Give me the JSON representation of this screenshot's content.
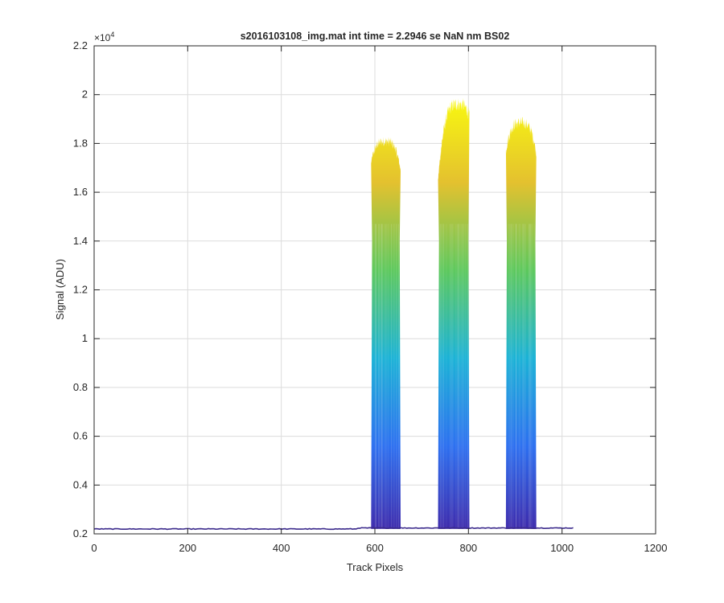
{
  "chart_data": {
    "type": "area",
    "title": "s2016103108_img.mat int time = 2.2946 se  NaN nm BS02",
    "xlabel": "Track Pixels",
    "ylabel": "Signal (ADU)",
    "y_exponent_label": "×10",
    "y_exponent_power": "4",
    "xlim": [
      0,
      1200
    ],
    "ylim": [
      2000,
      22000
    ],
    "x_ticks": [
      0,
      200,
      400,
      600,
      800,
      1000,
      1200
    ],
    "x_tick_labels": [
      "0",
      "200",
      "400",
      "600",
      "800",
      "1000",
      "1200"
    ],
    "y_ticks": [
      2000,
      4000,
      6000,
      8000,
      10000,
      12000,
      14000,
      16000,
      18000,
      20000,
      22000
    ],
    "y_tick_labels": [
      "0.2",
      "0.4",
      "0.6",
      "0.8",
      "1",
      "1.2",
      "1.4",
      "1.6",
      "1.8",
      "2",
      "2.2"
    ],
    "grid": true,
    "colormap": [
      "#3e26a8",
      "#2c6ff0",
      "#1ab2d6",
      "#5cc85c",
      "#e4c12f",
      "#f9fb0e"
    ],
    "baseline": 2200,
    "baseline_x_range": [
      0,
      1024
    ],
    "peaks": [
      {
        "x_start": 592,
        "x_end": 655,
        "x_center": 622,
        "max_value": 18300,
        "min_envelope_value": 4000
      },
      {
        "x_start": 735,
        "x_end": 802,
        "x_center": 778,
        "max_value": 19900,
        "min_envelope_value": 4000
      },
      {
        "x_start": 880,
        "x_end": 945,
        "x_center": 912,
        "max_value": 19100,
        "min_envelope_value": 4000
      }
    ]
  }
}
